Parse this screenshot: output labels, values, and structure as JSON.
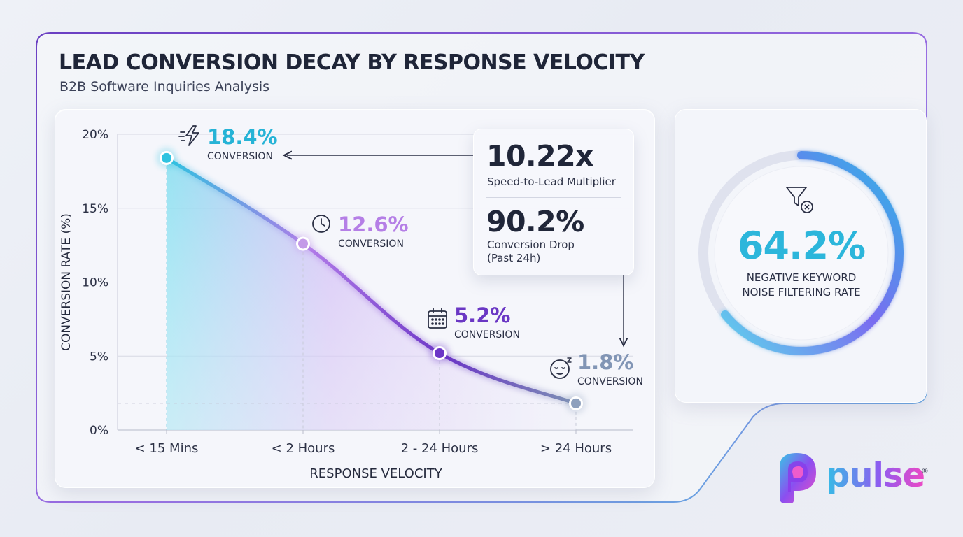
{
  "header": {
    "title": "LEAD CONVERSION DECAY BY RESPONSE VELOCITY",
    "subtitle": "B2B Software Inquiries Analysis"
  },
  "chart_data": {
    "type": "area",
    "title": "LEAD CONVERSION DECAY BY RESPONSE VELOCITY",
    "subtitle": "B2B Software Inquiries Analysis",
    "xlabel": "RESPONSE VELOCITY",
    "ylabel": "CONVERSION RATE (%)",
    "categories": [
      "< 15 Mins",
      "< 2 Hours",
      "2 - 24 Hours",
      "> 24 Hours"
    ],
    "values": [
      18.4,
      12.6,
      5.2,
      1.8
    ],
    "ylim": [
      0,
      20
    ],
    "yticks": [
      0,
      5,
      10,
      15,
      20
    ],
    "ytick_labels": [
      "0%",
      "5%",
      "10%",
      "15%",
      "20%"
    ],
    "grid": true,
    "annotations": [
      {
        "value_label": "18.4%",
        "sub_label": "CONVERSION",
        "icon": "lightning-icon",
        "color": "#26b3d6"
      },
      {
        "value_label": "12.6%",
        "sub_label": "CONVERSION",
        "icon": "clock-icon",
        "color": "#b57fe6"
      },
      {
        "value_label": "5.2%",
        "sub_label": "CONVERSION",
        "icon": "calendar-icon",
        "color": "#6a37c4"
      },
      {
        "value_label": "1.8%",
        "sub_label": "CONVERSION",
        "icon": "sleepy-face-icon",
        "color": "#8195b5"
      }
    ],
    "colors": {
      "start": "#2ec3e0",
      "mid": "#b07ae8",
      "deep": "#6b36c6",
      "end": "#7d92b4"
    }
  },
  "stats": {
    "multiplier_value": "10.22x",
    "multiplier_label": "Speed-to-Lead Multiplier",
    "drop_value": "90.2%",
    "drop_label_line1": "Conversion Drop",
    "drop_label_line2": "(Past 24h)"
  },
  "gauge": {
    "value": "64.2%",
    "fraction": 0.642,
    "label_line1": "NEGATIVE KEYWORD",
    "label_line2": "NOISE FILTERING RATE",
    "icon": "filter-x-icon"
  },
  "brand": {
    "name": "pulse",
    "registered": "®"
  }
}
